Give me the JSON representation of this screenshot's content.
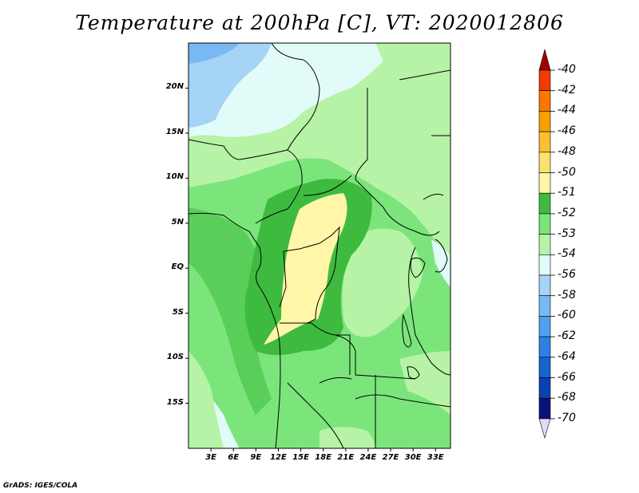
{
  "title": "Temperature at 200hPa [C], VT: 2020012806",
  "credit": "GrADS: IGES/COLA",
  "map": {
    "extent": {
      "lon_min": 0,
      "lon_max": 35,
      "lat_min": -20,
      "lat_max": 25
    },
    "lat_ticks": [
      {
        "value": 20,
        "label": "20N"
      },
      {
        "value": 15,
        "label": "15N"
      },
      {
        "value": 10,
        "label": "10N"
      },
      {
        "value": 5,
        "label": "5N"
      },
      {
        "value": 0,
        "label": "EQ"
      },
      {
        "value": -5,
        "label": "5S"
      },
      {
        "value": -10,
        "label": "10S"
      },
      {
        "value": -15,
        "label": "15S"
      }
    ],
    "lon_ticks": [
      {
        "value": 3,
        "label": "3E"
      },
      {
        "value": 6,
        "label": "6E"
      },
      {
        "value": 9,
        "label": "9E"
      },
      {
        "value": 12,
        "label": "12E"
      },
      {
        "value": 15,
        "label": "15E"
      },
      {
        "value": 18,
        "label": "18E"
      },
      {
        "value": 21,
        "label": "21E"
      },
      {
        "value": 24,
        "label": "24E"
      },
      {
        "value": 27,
        "label": "27E"
      },
      {
        "value": 30,
        "label": "30E"
      },
      {
        "value": 33,
        "label": "33E"
      }
    ]
  },
  "legend": {
    "levels": [
      {
        "label": "-40",
        "color": "#c80000"
      },
      {
        "label": "-42",
        "color": "#f03c00"
      },
      {
        "label": "-44",
        "color": "#fa7800"
      },
      {
        "label": "-46",
        "color": "#fa9f00"
      },
      {
        "label": "-48",
        "color": "#fac030"
      },
      {
        "label": "-50",
        "color": "#fae170"
      },
      {
        "label": "-51",
        "color": "#fff6a8"
      },
      {
        "label": "-52",
        "color": "#3ebb3e"
      },
      {
        "label": "-53",
        "color": "#7be57b"
      },
      {
        "label": "-54",
        "color": "#b7f3a6"
      },
      {
        "label": "-56",
        "color": "#e1fcf8"
      },
      {
        "label": "-58",
        "color": "#a5d4f7"
      },
      {
        "label": "-60",
        "color": "#78b9f4"
      },
      {
        "label": "-62",
        "color": "#52a0f0"
      },
      {
        "label": "-64",
        "color": "#2c82e4"
      },
      {
        "label": "-66",
        "color": "#1464d2"
      },
      {
        "label": "-68",
        "color": "#0a42b2"
      },
      {
        "label": "-70",
        "color": "#0a1478"
      }
    ],
    "top_color": "#a00000",
    "bottom_color": "#e0dcf8"
  }
}
